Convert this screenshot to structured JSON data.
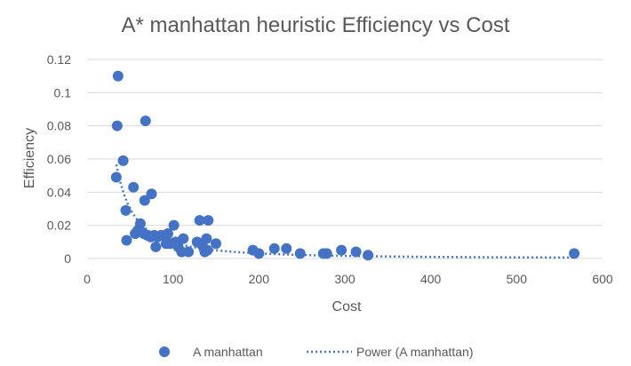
{
  "chart_data": {
    "type": "scatter",
    "title": "A* manhattan heuristic Efficiency vs Cost",
    "xlabel": "Cost",
    "ylabel": "Efficiency",
    "xlim": [
      0,
      600
    ],
    "ylim": [
      0,
      0.12
    ],
    "x_ticks": [
      0,
      100,
      200,
      300,
      400,
      500,
      600
    ],
    "x_tick_labels": [
      "0",
      "100",
      "200",
      "300",
      "400",
      "500",
      "600"
    ],
    "y_ticks": [
      0,
      0.02,
      0.04,
      0.06,
      0.08,
      0.1,
      0.12
    ],
    "y_tick_labels": [
      "0",
      "0.02",
      "0.04",
      "0.06",
      "0.08",
      "0.1",
      "0.12"
    ],
    "grid": true,
    "legend_position": "bottom",
    "series": [
      {
        "name": "A manhattan",
        "color": "#4472c4",
        "points": [
          [
            36,
            0.11
          ],
          [
            35,
            0.08
          ],
          [
            68,
            0.083
          ],
          [
            42,
            0.059
          ],
          [
            34,
            0.049
          ],
          [
            54,
            0.043
          ],
          [
            75,
            0.039
          ],
          [
            67,
            0.035
          ],
          [
            45,
            0.029
          ],
          [
            62,
            0.021
          ],
          [
            56,
            0.015
          ],
          [
            59,
            0.017
          ],
          [
            63,
            0.016
          ],
          [
            66,
            0.015
          ],
          [
            70,
            0.014
          ],
          [
            74,
            0.013
          ],
          [
            78,
            0.014
          ],
          [
            82,
            0.013
          ],
          [
            86,
            0.014
          ],
          [
            90,
            0.014
          ],
          [
            94,
            0.015
          ],
          [
            46,
            0.011
          ],
          [
            80,
            0.007
          ],
          [
            92,
            0.009
          ],
          [
            97,
            0.009
          ],
          [
            101,
            0.02
          ],
          [
            103,
            0.01
          ],
          [
            106,
            0.007
          ],
          [
            110,
            0.004
          ],
          [
            112,
            0.012
          ],
          [
            118,
            0.004
          ],
          [
            128,
            0.01
          ],
          [
            131,
            0.023
          ],
          [
            134,
            0.008
          ],
          [
            136,
            0.006
          ],
          [
            137,
            0.004
          ],
          [
            139,
            0.012
          ],
          [
            140,
            0.005
          ],
          [
            141,
            0.023
          ],
          [
            150,
            0.009
          ],
          [
            193,
            0.005
          ],
          [
            200,
            0.003
          ],
          [
            218,
            0.006
          ],
          [
            232,
            0.006
          ],
          [
            248,
            0.003
          ],
          [
            275,
            0.003
          ],
          [
            279,
            0.003
          ],
          [
            296,
            0.005
          ],
          [
            313,
            0.004
          ],
          [
            327,
            0.002
          ],
          [
            567,
            0.003
          ]
        ]
      },
      {
        "name": "Power (A manhattan)",
        "type": "trendline",
        "fit": "power",
        "style": "dotted",
        "color": "#4472c4",
        "coefficient": 18.4,
        "exponent": -1.64
      }
    ]
  }
}
